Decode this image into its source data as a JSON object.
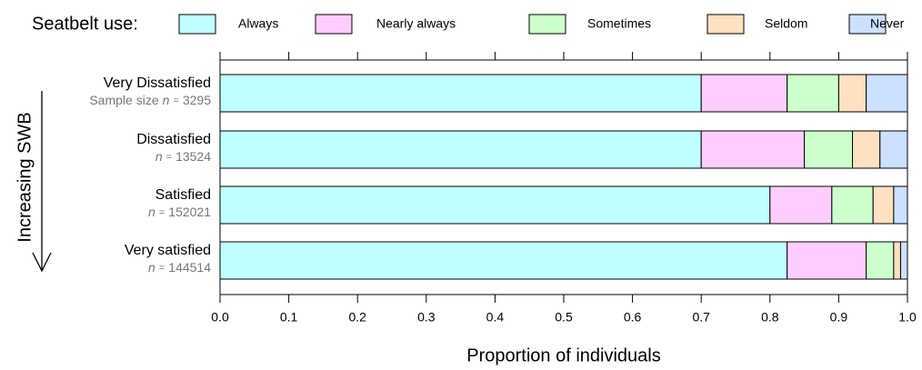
{
  "chart_data": {
    "type": "stacked_barh",
    "legend_title": "Seatbelt use:",
    "categories": [
      "Very Dissatisfied",
      "Dissatisfied",
      "Satisfied",
      "Very satisfied"
    ],
    "sample_prefix": "Sample size",
    "n_symbol": "n",
    "equals_sign": "=",
    "sample_sizes": [
      3295,
      13524,
      152021,
      144514
    ],
    "y_label": "Increasing SWB",
    "x_label": "Proportion of individuals",
    "series": [
      {
        "name": "Always",
        "color": "#c0ffff",
        "values": [
          0.7,
          0.7,
          0.8,
          0.825
        ]
      },
      {
        "name": "Nearly always",
        "color": "#ffccff",
        "values": [
          0.125,
          0.15,
          0.09,
          0.115
        ]
      },
      {
        "name": "Sometimes",
        "color": "#ccffcc",
        "values": [
          0.075,
          0.07,
          0.06,
          0.04
        ]
      },
      {
        "name": "Seldom",
        "color": "#ffe0c0",
        "values": [
          0.04,
          0.04,
          0.03,
          0.01
        ]
      },
      {
        "name": "Never",
        "color": "#cce0ff",
        "values": [
          0.06,
          0.04,
          0.02,
          0.01
        ]
      }
    ],
    "xlim": [
      0,
      1
    ],
    "xticks": [
      {
        "value": 0,
        "label": "0.0"
      },
      0.1,
      0.2,
      0.3,
      0.4,
      0.5,
      0.6,
      0.7,
      0.8,
      0.9,
      {
        "value": 1,
        "label": "1.0"
      }
    ]
  }
}
